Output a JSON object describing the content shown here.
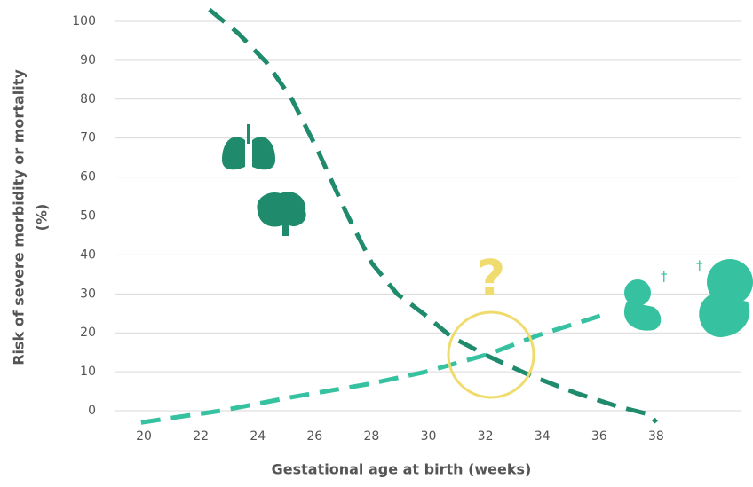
{
  "chart_data": {
    "type": "line",
    "y_label_lines": [
      "Risk of severe morbidity or mortality",
      "(%)"
    ],
    "x_label": "Gestational age at birth (weeks)",
    "annotation": "?",
    "daggers": [
      "†",
      "†"
    ],
    "xlim": [
      19,
      41
    ],
    "ylim": [
      -5,
      105
    ],
    "xticks": [
      20,
      22,
      24,
      26,
      28,
      30,
      32,
      34,
      36,
      38
    ],
    "yticks": [
      0,
      10,
      20,
      30,
      40,
      50,
      60,
      70,
      80,
      90,
      100
    ],
    "grid": true,
    "series": [
      {
        "color": "#1f8a6c",
        "x": [
          22.3,
          23.3,
          24.3,
          25.2,
          26.1,
          27.1,
          28,
          28.9,
          29.9,
          30.8,
          32.1,
          33.6,
          35.2,
          36.7,
          37.8,
          38
        ],
        "values": [
          103,
          97,
          89.5,
          80,
          67,
          51,
          38,
          30,
          24.5,
          19,
          14,
          9,
          4.5,
          1,
          -1,
          -3
        ]
      },
      {
        "color": "#36c2a0",
        "x": [
          19.9,
          22.7,
          25.2,
          28,
          29.9,
          32.1,
          33.9,
          36.1
        ],
        "values": [
          -3,
          0,
          3.5,
          7,
          10,
          14.5,
          19.5,
          24.5
        ]
      }
    ]
  }
}
